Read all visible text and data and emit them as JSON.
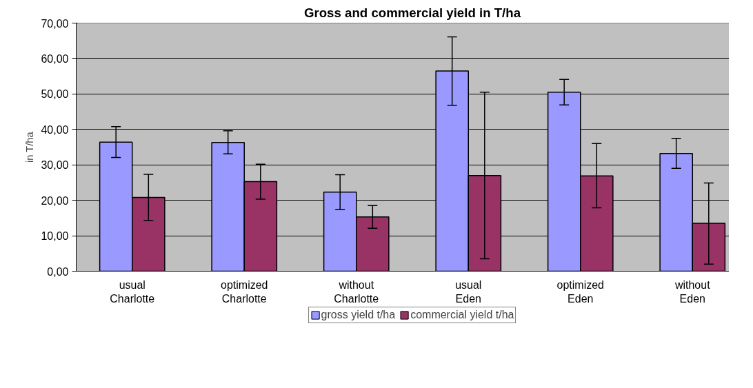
{
  "chart_data": {
    "type": "bar",
    "title": "Gross and commercial yield in T/ha",
    "ylabel": "in T/ha",
    "categories": [
      "usual\nCharlotte",
      "optimized\nCharlotte",
      "without\nCharlotte",
      "usual\nEden",
      "optimized\nEden",
      "without\nEden"
    ],
    "series": [
      {
        "name": "gross yield t/ha",
        "color": "#9999ff",
        "values": [
          36.4,
          36.3,
          22.3,
          56.5,
          50.5,
          33.2
        ],
        "errors": [
          [
            32.1,
            40.8
          ],
          [
            33.1,
            39.6
          ],
          [
            17.4,
            27.2
          ],
          [
            46.8,
            66.1
          ],
          [
            46.9,
            54.1
          ],
          [
            29.0,
            37.5
          ]
        ]
      },
      {
        "name": "commercial yield t/ha",
        "color": "#993366",
        "values": [
          20.8,
          25.3,
          15.3,
          27.0,
          26.9,
          13.5
        ],
        "errors": [
          [
            14.3,
            27.3
          ],
          [
            20.3,
            30.2
          ],
          [
            12.1,
            18.5
          ],
          [
            3.5,
            50.5
          ],
          [
            17.9,
            36.0
          ],
          [
            2.0,
            24.9
          ]
        ]
      }
    ],
    "ylim": [
      0,
      70
    ],
    "yticks": [
      {
        "value": 0,
        "label": "0,00"
      },
      {
        "value": 10,
        "label": "10,00"
      },
      {
        "value": 20,
        "label": "20,00"
      },
      {
        "value": 30,
        "label": "30,00"
      },
      {
        "value": 40,
        "label": "40,00"
      },
      {
        "value": 50,
        "label": "50,00"
      },
      {
        "value": 60,
        "label": "60,00"
      },
      {
        "value": 70,
        "label": "70,00"
      }
    ],
    "grid": "y",
    "legend": "bottom"
  }
}
